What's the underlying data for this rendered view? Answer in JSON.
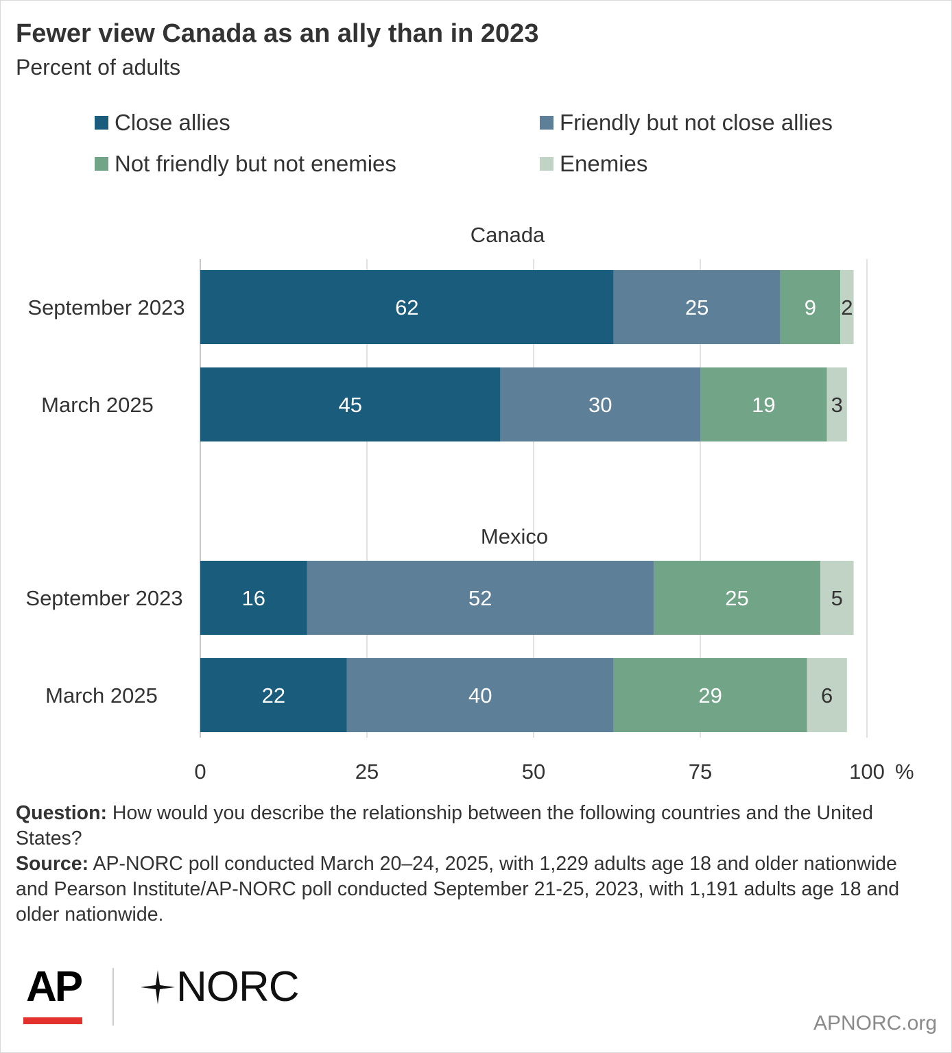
{
  "header": {
    "title": "Fewer view Canada as an ally than in 2023",
    "subtitle": "Percent of adults"
  },
  "legend": [
    {
      "label": "Close allies",
      "color": "#1a5c7b"
    },
    {
      "label": "Friendly but not close allies",
      "color": "#5d7f97"
    },
    {
      "label": "Not friendly but not enemies",
      "color": "#72a487"
    },
    {
      "label": "Enemies",
      "color": "#c1d3c5"
    }
  ],
  "chart_data": {
    "type": "bar",
    "orientation": "horizontal",
    "stacked": true,
    "xlim": [
      0,
      100
    ],
    "x_ticks": [
      0,
      25,
      50,
      75,
      100
    ],
    "x_unit": "%",
    "grid": true,
    "legend_position": "top",
    "series_names": [
      "Close allies",
      "Friendly but not close allies",
      "Not friendly but not enemies",
      "Enemies"
    ],
    "groups": [
      {
        "name": "Canada",
        "rows": [
          {
            "label": "September 2023",
            "values": [
              62,
              25,
              9,
              2
            ]
          },
          {
            "label": "March 2025",
            "values": [
              45,
              30,
              19,
              3
            ]
          }
        ]
      },
      {
        "name": "Mexico",
        "rows": [
          {
            "label": "September 2023",
            "values": [
              16,
              52,
              25,
              5
            ]
          },
          {
            "label": "March 2025",
            "values": [
              22,
              40,
              29,
              6
            ]
          }
        ]
      }
    ]
  },
  "footnote": {
    "question_label": "Question:",
    "question_text": " How would you describe the relationship between the following countries and the United States?",
    "source_label": "Source:",
    "source_text": " AP-NORC poll conducted March 20–24, 2025, with 1,229 adults age 18 and older nationwide and Pearson Institute/AP-NORC poll conducted September 21-25, 2023, with 1,191 adults age 18 and older nationwide."
  },
  "branding": {
    "ap_logo": "AP",
    "norc_logo": "NORC",
    "site": "APNORC.org"
  }
}
